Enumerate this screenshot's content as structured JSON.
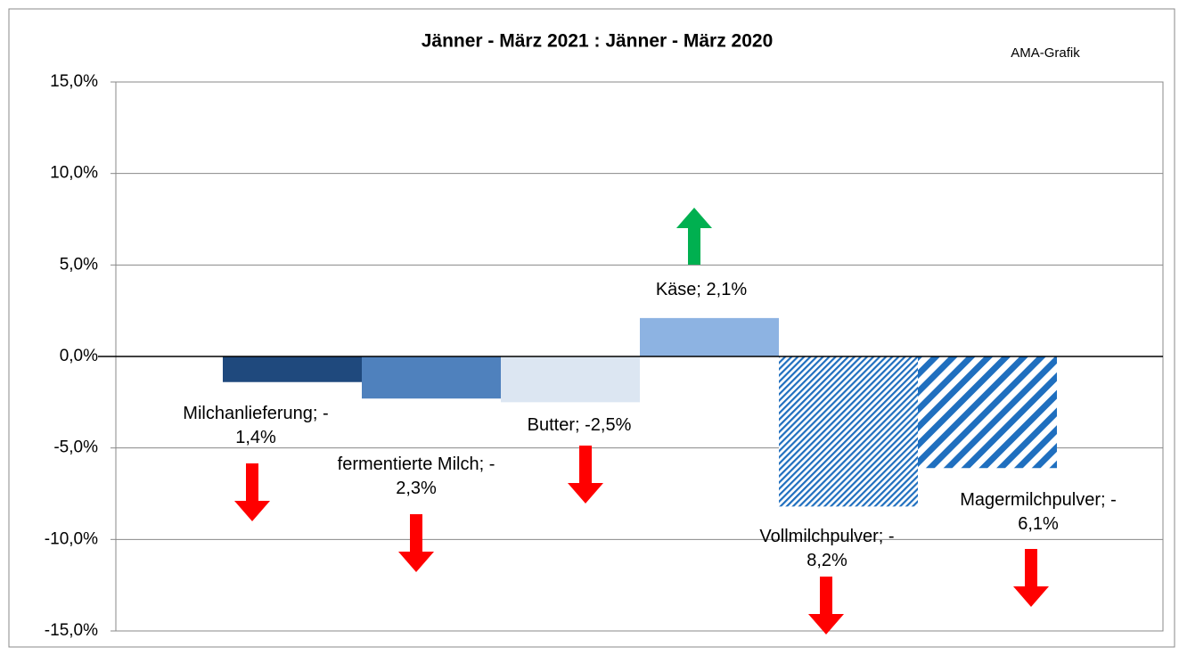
{
  "chart_data": {
    "type": "bar",
    "title": "Jänner - März 2021 : Jänner - März 2020",
    "annotation": "AMA-Grafik",
    "values": [
      -1.4,
      -2.3,
      -2.5,
      2.1,
      -8.2,
      -6.1
    ],
    "value_labels": [
      [
        "Milchanlieferung; -",
        "1,4%"
      ],
      [
        "fermentierte Milch; -",
        "2,3%"
      ],
      [
        "Butter; -2,5%"
      ],
      [
        "Käse; 2,1%"
      ],
      [
        "Vollmilchpulver; -",
        "8,2%"
      ],
      [
        "Magermilchpulver; -",
        "6,1%"
      ]
    ],
    "colors": [
      "#1f497d",
      "#4f81bd",
      "#dce6f2",
      "#8db3e2",
      "#1f6fbf",
      "#1f6fbf"
    ],
    "patterns": [
      null,
      null,
      null,
      null,
      "fine",
      "wide"
    ],
    "ylim": [
      -15,
      15
    ],
    "yticks": [
      {
        "value": -15,
        "label": "-15,0%"
      },
      {
        "value": -10,
        "label": "-10,0%"
      },
      {
        "value": -5,
        "label": "-5,0%"
      },
      {
        "value": 0,
        "label": "0,0%"
      },
      {
        "value": 5,
        "label": "5,0%"
      },
      {
        "value": 10,
        "label": "10,0%"
      },
      {
        "value": 15,
        "label": "15,0%"
      }
    ],
    "grid": true
  }
}
